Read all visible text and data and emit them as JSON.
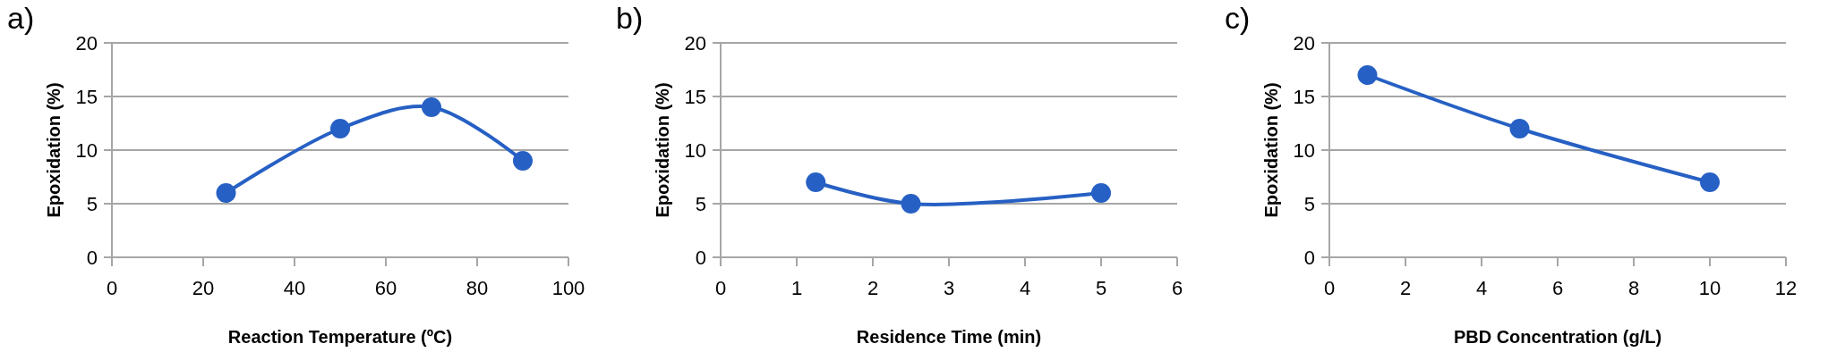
{
  "chart_data": [
    {
      "type": "line",
      "title": "a)",
      "xlabel": "Reaction Temperature (ºC)",
      "ylabel": "Epoxidation (%)",
      "x": [
        25,
        50,
        70,
        90
      ],
      "series": [
        {
          "color": "#2760c4",
          "values": [
            6,
            12,
            14,
            9
          ]
        }
      ],
      "xlim": [
        0,
        100
      ],
      "xticks": [
        0,
        20,
        40,
        60,
        80,
        100
      ],
      "ylim": [
        0,
        20
      ],
      "yticks": [
        0,
        5,
        10,
        15,
        20
      ],
      "grid": "y",
      "marker": "circle",
      "line_style": "solid"
    },
    {
      "type": "line",
      "title": "b)",
      "xlabel": "Residence Time (min)",
      "ylabel": "Epoxidation (%)",
      "x": [
        1.25,
        2.5,
        5
      ],
      "series": [
        {
          "color": "#2760c4",
          "values": [
            7,
            5,
            6
          ]
        }
      ],
      "xlim": [
        0,
        6
      ],
      "xticks": [
        0,
        1,
        2,
        3,
        4,
        5,
        6
      ],
      "ylim": [
        0,
        20
      ],
      "yticks": [
        0,
        5,
        10,
        15,
        20
      ],
      "grid": "y",
      "marker": "circle",
      "line_style": "solid"
    },
    {
      "type": "line",
      "title": "c)",
      "xlabel": "PBD Concentration (g/L)",
      "ylabel": "Epoxidation (%)",
      "x": [
        1,
        5,
        10
      ],
      "series": [
        {
          "color": "#2760c4",
          "values": [
            17,
            12,
            7
          ]
        }
      ],
      "xlim": [
        0,
        12
      ],
      "xticks": [
        0,
        2,
        4,
        6,
        8,
        10,
        12
      ],
      "ylim": [
        0,
        20
      ],
      "yticks": [
        0,
        5,
        10,
        15,
        20
      ],
      "grid": "y",
      "marker": "circle",
      "line_style": "solid"
    }
  ]
}
